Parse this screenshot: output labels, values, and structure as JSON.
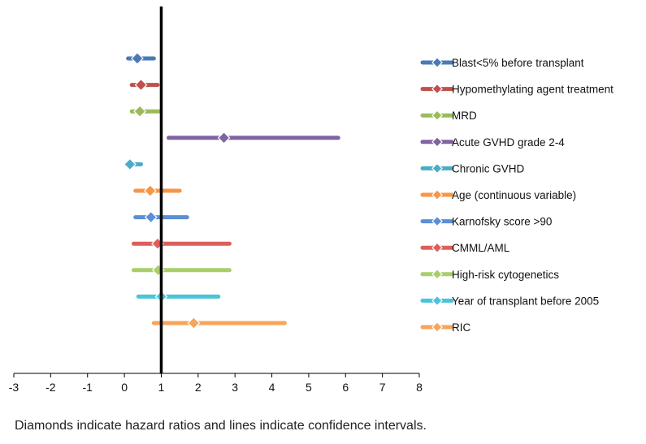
{
  "chart_data": {
    "type": "forest",
    "title": "",
    "xlabel": "",
    "ylabel": "",
    "xlim": [
      -3,
      8
    ],
    "xticks": [
      "-3",
      "-2",
      "-1",
      "0",
      "1",
      "2",
      "3",
      "4",
      "5",
      "6",
      "7",
      "8"
    ],
    "reference_line": 1,
    "grid": false,
    "legend_position": "right",
    "series": [
      {
        "name": "Blast<5% before transplant",
        "hr": 0.35,
        "ci_low": 0.1,
        "ci_high": 0.8,
        "color": "#4a7ab5"
      },
      {
        "name": "Hypomethylating agent treatment",
        "hr": 0.45,
        "ci_low": 0.2,
        "ci_high": 0.9,
        "color": "#c0504d"
      },
      {
        "name": "MRD",
        "hr": 0.42,
        "ci_low": 0.2,
        "ci_high": 0.98,
        "color": "#9bbb59"
      },
      {
        "name": "Acute GVHD grade 2-4",
        "hr": 2.7,
        "ci_low": 1.2,
        "ci_high": 5.8,
        "color": "#8064a2"
      },
      {
        "name": "Chronic GVHD",
        "hr": 0.15,
        "ci_low": 0.05,
        "ci_high": 0.45,
        "color": "#4bacc6"
      },
      {
        "name": "Age (continuous variable)",
        "hr": 0.7,
        "ci_low": 0.3,
        "ci_high": 1.5,
        "color": "#f79646"
      },
      {
        "name": "Karnofsky score >90",
        "hr": 0.72,
        "ci_low": 0.3,
        "ci_high": 1.7,
        "color": "#5b8fd6"
      },
      {
        "name": "CMML/AML",
        "hr": 0.9,
        "ci_low": 0.25,
        "ci_high": 2.85,
        "color": "#dd5f5b"
      },
      {
        "name": "High-risk cytogenetics",
        "hr": 0.92,
        "ci_low": 0.25,
        "ci_high": 2.85,
        "color": "#a8cf6a"
      },
      {
        "name": "Year of transplant before 2005",
        "hr": 1.0,
        "ci_low": 0.38,
        "ci_high": 2.55,
        "color": "#4bc3d9"
      },
      {
        "name": "RIC",
        "hr": 1.88,
        "ci_low": 0.8,
        "ci_high": 4.35,
        "color": "#f6a55a"
      }
    ]
  },
  "caption": "Diamonds indicate hazard ratios and lines indicate confidence intervals."
}
